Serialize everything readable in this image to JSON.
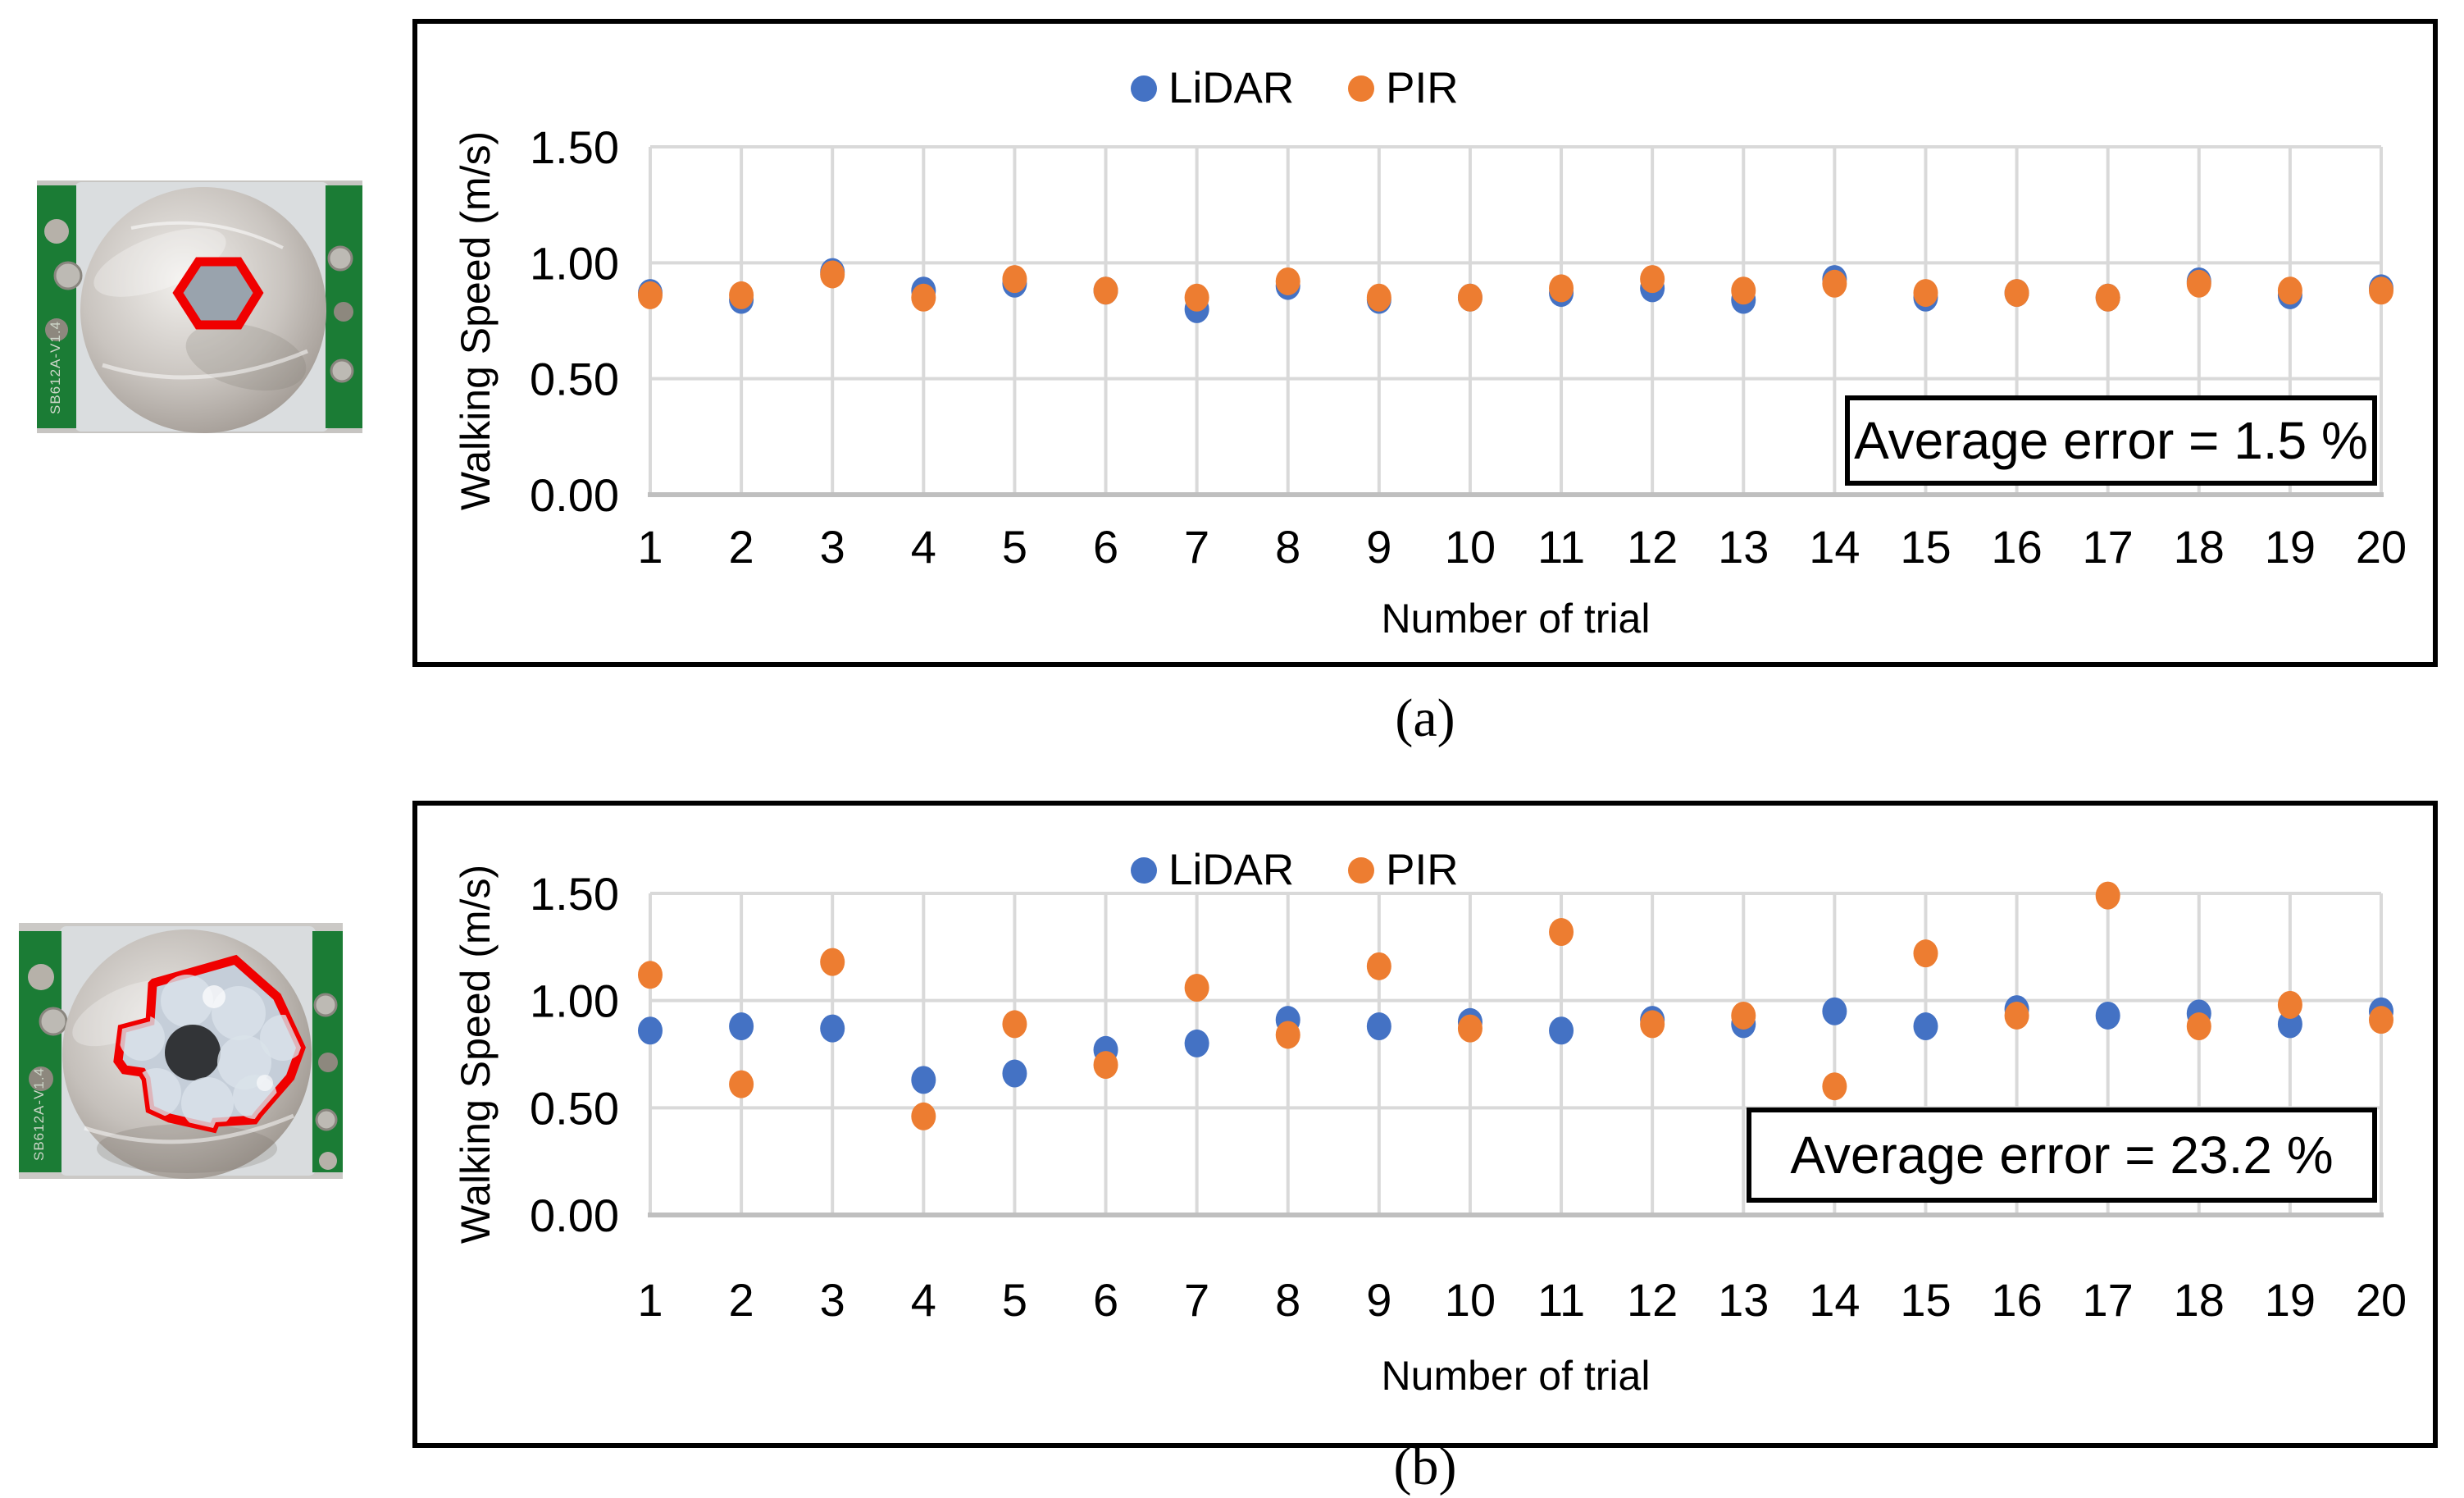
{
  "figure": {
    "panels": [
      {
        "id": "a",
        "caption": "(a)",
        "photo": {
          "board_label": "SB612A-V1.4",
          "overlay": "small-hexagon-outline",
          "outline_color": "#FF0000"
        }
      },
      {
        "id": "b",
        "caption": "(b)",
        "photo": {
          "board_label": "SB612A-V1.4",
          "overlay": "large-polygon-outline",
          "outline_color": "#FF0000"
        }
      }
    ]
  },
  "chart_data": [
    {
      "type": "scatter",
      "title": "",
      "xlabel": "Number of trial",
      "ylabel": "Walking Speed (m/s)",
      "x": [
        1,
        2,
        3,
        4,
        5,
        6,
        7,
        8,
        9,
        10,
        11,
        12,
        13,
        14,
        15,
        16,
        17,
        18,
        19,
        20
      ],
      "ylim": [
        0,
        1.5
      ],
      "yticks": [
        "0.00",
        "0.50",
        "1.00",
        "1.50"
      ],
      "grid": "on",
      "legend_position": "top-center",
      "annotation": "Average error = 1.5 %",
      "series": [
        {
          "name": "LiDAR",
          "color": "#4472C4",
          "values": [
            0.87,
            0.84,
            0.96,
            0.88,
            0.91,
            0.88,
            0.8,
            0.9,
            0.84,
            0.85,
            0.87,
            0.89,
            0.84,
            0.93,
            0.85,
            0.87,
            0.85,
            0.92,
            0.86,
            0.89
          ]
        },
        {
          "name": "PIR",
          "color": "#ED7D31",
          "values": [
            0.86,
            0.86,
            0.95,
            0.85,
            0.93,
            0.88,
            0.85,
            0.92,
            0.85,
            0.85,
            0.89,
            0.93,
            0.88,
            0.91,
            0.87,
            0.87,
            0.85,
            0.91,
            0.88,
            0.88
          ]
        }
      ]
    },
    {
      "type": "scatter",
      "title": "",
      "xlabel": "Number of trial",
      "ylabel": "Walking Speed (m/s)",
      "x": [
        1,
        2,
        3,
        4,
        5,
        6,
        7,
        8,
        9,
        10,
        11,
        12,
        13,
        14,
        15,
        16,
        17,
        18,
        19,
        20
      ],
      "ylim": [
        0,
        1.5
      ],
      "yticks": [
        "0.00",
        "0.50",
        "1.00",
        "1.50"
      ],
      "grid": "on",
      "legend_position": "top-center",
      "annotation": "Average error = 23.2 %",
      "series": [
        {
          "name": "LiDAR",
          "color": "#4472C4",
          "values": [
            0.86,
            0.88,
            0.87,
            0.63,
            0.66,
            0.77,
            0.8,
            0.91,
            0.88,
            0.9,
            0.86,
            0.91,
            0.89,
            0.95,
            0.88,
            0.96,
            0.93,
            0.94,
            0.89,
            0.95
          ]
        },
        {
          "name": "PIR",
          "color": "#ED7D31",
          "values": [
            1.12,
            0.61,
            1.18,
            0.46,
            0.89,
            0.7,
            1.06,
            0.84,
            1.16,
            0.87,
            1.32,
            0.89,
            0.93,
            0.6,
            1.22,
            0.93,
            1.49,
            0.88,
            0.98,
            0.91
          ]
        }
      ]
    }
  ]
}
